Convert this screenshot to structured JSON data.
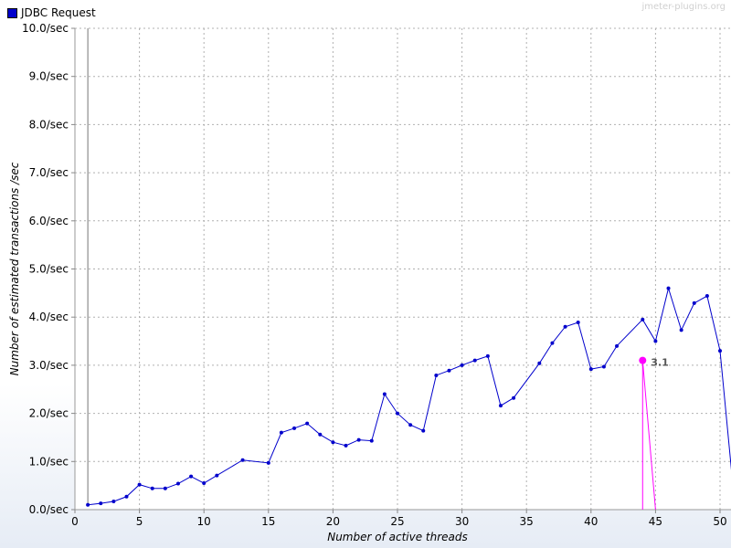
{
  "legend": {
    "label": "JDBC Request",
    "color": "#0000cc"
  },
  "watermark": "jmeter-plugins.org",
  "chart_data": {
    "type": "line",
    "xlabel": "Number of active threads",
    "ylabel": "Number of estimated transactions /sec",
    "xlim": [
      0,
      50
    ],
    "ylim": [
      0,
      10
    ],
    "grid": true,
    "legend_position": "top-left",
    "xticks": [
      0,
      5,
      10,
      15,
      20,
      25,
      30,
      35,
      40,
      45,
      50
    ],
    "xtick_labels": [
      "0",
      "5",
      "10",
      "15",
      "20",
      "25",
      "30",
      "35",
      "40",
      "45",
      "50"
    ],
    "yticks": [
      0,
      1,
      2,
      3,
      4,
      5,
      6,
      7,
      8,
      9,
      10
    ],
    "ytick_labels": [
      "0.0/sec",
      "1.0/sec",
      "2.0/sec",
      "3.0/sec",
      "4.0/sec",
      "5.0/sec",
      "6.0/sec",
      "7.0/sec",
      "8.0/sec",
      "9.0/sec",
      "10.0/sec"
    ],
    "series": [
      {
        "name": "JDBC Request",
        "color": "#0000cc",
        "x": [
          1,
          2,
          3,
          4,
          5,
          6,
          7,
          8,
          9,
          10,
          11,
          13,
          15,
          16,
          17,
          18,
          19,
          20,
          21,
          22,
          23,
          24,
          25,
          26,
          27,
          28,
          29,
          30,
          31,
          32,
          33,
          34,
          36,
          37,
          38,
          39,
          40,
          41,
          42,
          44,
          45,
          46,
          47,
          48,
          49,
          50,
          51
        ],
        "y": [
          0.1,
          0.13,
          0.17,
          0.27,
          0.52,
          0.44,
          0.44,
          0.54,
          0.69,
          0.55,
          0.71,
          1.03,
          0.97,
          1.6,
          1.69,
          1.79,
          1.56,
          1.4,
          1.33,
          1.45,
          1.43,
          2.4,
          2.0,
          1.76,
          1.64,
          2.79,
          2.89,
          3.0,
          3.1,
          3.19,
          2.16,
          2.32,
          3.04,
          3.46,
          3.8,
          3.89,
          2.92,
          2.97,
          3.4,
          3.95,
          3.5,
          4.6,
          3.73,
          4.29,
          4.44,
          3.3,
          0.5
        ]
      }
    ],
    "annotation": {
      "x": 44,
      "y": 3.1,
      "label": "3.1",
      "color": "#ff00ff"
    }
  }
}
